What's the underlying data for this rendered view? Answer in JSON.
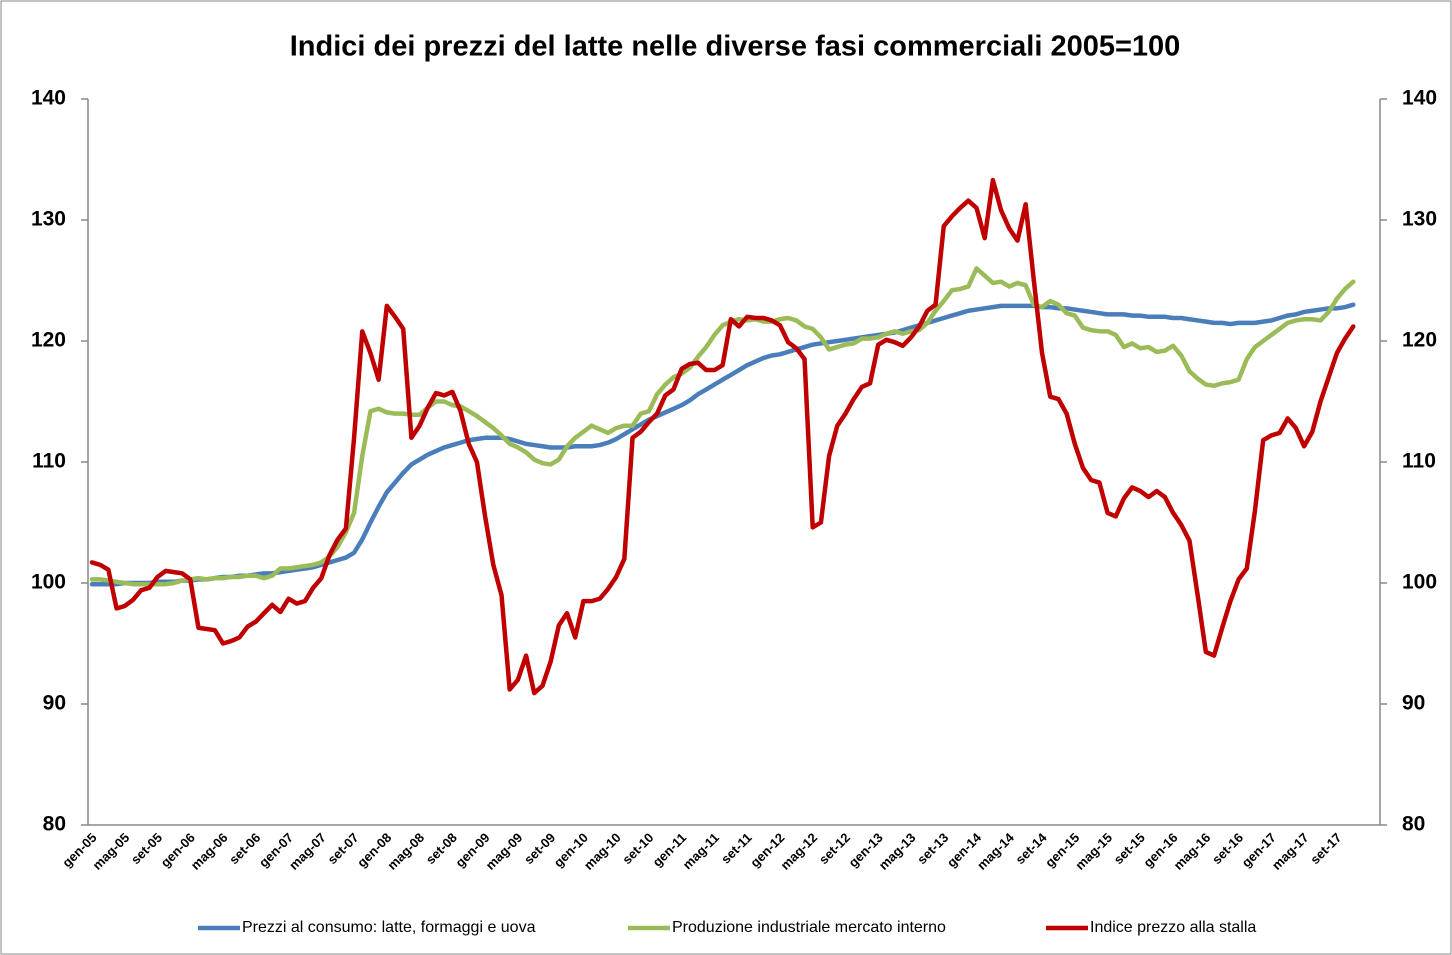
{
  "chart_data": {
    "type": "line",
    "title": "Indici dei prezzi del latte nelle diverse fasi commerciali 2005=100",
    "categories": [
      "gen-05",
      null,
      null,
      null,
      "mag-05",
      null,
      null,
      null,
      "set-05",
      null,
      null,
      null,
      "gen-06",
      null,
      null,
      null,
      "mag-06",
      null,
      null,
      null,
      "set-06",
      null,
      null,
      null,
      "gen-07",
      null,
      null,
      null,
      "mag-07",
      null,
      null,
      null,
      "set-07",
      null,
      null,
      null,
      "gen-08",
      null,
      null,
      null,
      "mag-08",
      null,
      null,
      null,
      "set-08",
      null,
      null,
      null,
      "gen-09",
      null,
      null,
      null,
      "mag-09",
      null,
      null,
      null,
      "set-09",
      null,
      null,
      null,
      "gen-10",
      null,
      null,
      null,
      "mag-10",
      null,
      null,
      null,
      "set-10",
      null,
      null,
      null,
      "gen-11",
      null,
      null,
      null,
      "mag-11",
      null,
      null,
      null,
      "set-11",
      null,
      null,
      null,
      "gen-12",
      null,
      null,
      null,
      "mag-12",
      null,
      null,
      null,
      "set-12",
      null,
      null,
      null,
      "gen-13",
      null,
      null,
      null,
      "mag-13",
      null,
      null,
      null,
      "set-13",
      null,
      null,
      null,
      "gen-14",
      null,
      null,
      null,
      "mag-14",
      null,
      null,
      null,
      "set-14",
      null,
      null,
      null,
      "gen-15",
      null,
      null,
      null,
      "mag-15",
      null,
      null,
      null,
      "set-15",
      null,
      null,
      null,
      "gen-16",
      null,
      null,
      null,
      "mag-16",
      null,
      null,
      null,
      "set-16",
      null,
      null,
      null,
      "gen-17",
      null,
      null,
      null,
      "mag-17",
      null,
      null,
      null,
      "set-17",
      null,
      null
    ],
    "series": [
      {
        "name": "Prezzi al consumo: latte, formaggi e uova",
        "color": "#4a7ebb",
        "values": [
          99.9,
          99.9,
          99.9,
          99.9,
          100,
          100,
          100,
          100,
          100.1,
          100.1,
          100.1,
          100.2,
          100.2,
          100.3,
          100.3,
          100.4,
          100.5,
          100.5,
          100.6,
          100.6,
          100.7,
          100.8,
          100.8,
          100.9,
          101,
          101.1,
          101.2,
          101.3,
          101.5,
          101.7,
          101.9,
          102.1,
          102.5,
          103.6,
          105,
          106.3,
          107.5,
          108.3,
          109.1,
          109.8,
          110.2,
          110.6,
          110.9,
          111.2,
          111.4,
          111.6,
          111.8,
          111.9,
          112,
          112,
          112,
          111.9,
          111.7,
          111.5,
          111.4,
          111.3,
          111.2,
          111.2,
          111.2,
          111.3,
          111.3,
          111.3,
          111.4,
          111.6,
          111.9,
          112.3,
          112.7,
          113.1,
          113.5,
          113.8,
          114.1,
          114.4,
          114.7,
          115.1,
          115.6,
          116,
          116.4,
          116.8,
          117.2,
          117.6,
          118,
          118.3,
          118.6,
          118.8,
          118.9,
          119.1,
          119.3,
          119.5,
          119.7,
          119.8,
          119.9,
          120,
          120.1,
          120.2,
          120.3,
          120.4,
          120.5,
          120.6,
          120.7,
          120.9,
          121.1,
          121.3,
          121.5,
          121.7,
          121.9,
          122.1,
          122.3,
          122.5,
          122.6,
          122.7,
          122.8,
          122.9,
          122.9,
          122.9,
          122.9,
          122.9,
          122.8,
          122.8,
          122.7,
          122.7,
          122.6,
          122.5,
          122.4,
          122.3,
          122.2,
          122.2,
          122.2,
          122.1,
          122.1,
          122,
          122,
          122,
          121.9,
          121.9,
          121.8,
          121.7,
          121.6,
          121.5,
          121.5,
          121.4,
          121.5,
          121.5,
          121.5,
          121.6,
          121.7,
          121.9,
          122.1,
          122.2,
          122.4,
          122.5,
          122.6,
          122.7,
          122.7,
          122.8,
          123
        ]
      },
      {
        "name": "Produzione industriale mercato interno",
        "color": "#9bbb59",
        "values": [
          100.3,
          100.3,
          100.2,
          100.1,
          100,
          99.9,
          99.9,
          99.9,
          99.9,
          99.9,
          100,
          100.2,
          100.3,
          100.4,
          100.3,
          100.4,
          100.4,
          100.5,
          100.5,
          100.6,
          100.6,
          100.4,
          100.6,
          101.2,
          101.2,
          101.3,
          101.4,
          101.5,
          101.7,
          102.2,
          103,
          104.2,
          105.8,
          110.5,
          114.2,
          114.4,
          114.1,
          114,
          114,
          113.9,
          113.9,
          114.5,
          115,
          115,
          114.7,
          114.6,
          114.2,
          113.8,
          113.3,
          112.8,
          112.2,
          111.5,
          111.2,
          110.8,
          110.2,
          109.9,
          109.8,
          110.2,
          111.3,
          112,
          112.5,
          113,
          112.7,
          112.4,
          112.8,
          113,
          113,
          114,
          114.2,
          115.6,
          116.4,
          117,
          117.3,
          117.8,
          118.7,
          119.5,
          120.5,
          121.3,
          121.6,
          121.8,
          121.7,
          121.8,
          121.6,
          121.6,
          121.8,
          121.9,
          121.7,
          121.2,
          121,
          120.3,
          119.3,
          119.5,
          119.7,
          119.8,
          120.2,
          120.2,
          120.3,
          120.6,
          120.8,
          120.6,
          120.8,
          120.9,
          121.5,
          122.5,
          123.3,
          124.2,
          124.3,
          124.5,
          126,
          125.4,
          124.8,
          124.9,
          124.5,
          124.8,
          124.6,
          123,
          122.8,
          123.3,
          123,
          122.3,
          122.1,
          121.1,
          120.9,
          120.8,
          120.8,
          120.5,
          119.5,
          119.8,
          119.4,
          119.5,
          119.1,
          119.2,
          119.6,
          118.8,
          117.5,
          116.9,
          116.4,
          116.3,
          116.5,
          116.6,
          116.8,
          118.5,
          119.5,
          120,
          120.5,
          121,
          121.5,
          121.7,
          121.8,
          121.8,
          121.7,
          122.4,
          123.5,
          124.3,
          124.9
        ]
      },
      {
        "name": "Indice prezzo alla stalla",
        "color": "#c00000",
        "values": [
          101.7,
          101.5,
          101.1,
          97.9,
          98.1,
          98.6,
          99.4,
          99.6,
          100.5,
          101,
          100.9,
          100.8,
          100.3,
          96.3,
          96.2,
          96.1,
          95,
          95.2,
          95.5,
          96.4,
          96.8,
          97.5,
          98.2,
          97.6,
          98.7,
          98.3,
          98.5,
          99.6,
          100.4,
          102.3,
          103.6,
          104.5,
          112,
          120.8,
          119,
          116.8,
          122.9,
          122,
          121,
          112,
          113,
          114.5,
          115.7,
          115.5,
          115.8,
          114.2,
          111.5,
          110,
          105.5,
          101.5,
          99,
          91.2,
          92,
          94,
          90.9,
          91.5,
          93.5,
          96.5,
          97.5,
          95.5,
          98.5,
          98.5,
          98.7,
          99.5,
          100.5,
          102,
          112,
          112.5,
          113.3,
          114,
          115.5,
          116,
          117.7,
          118.1,
          118.2,
          117.6,
          117.6,
          118,
          121.8,
          121.2,
          122,
          121.9,
          121.9,
          121.7,
          121.3,
          119.9,
          119.4,
          118.5,
          104.6,
          105,
          110.5,
          113,
          114,
          115.2,
          116.2,
          116.5,
          119.7,
          120.1,
          119.9,
          119.6,
          120.3,
          121.2,
          122.5,
          123,
          129.5,
          130.3,
          131,
          131.6,
          131,
          128.5,
          133.3,
          130.8,
          129.3,
          128.3,
          131.3,
          125,
          119,
          115.4,
          115.2,
          114,
          111.5,
          109.5,
          108.5,
          108.3,
          105.8,
          105.5,
          107,
          107.9,
          107.6,
          107.1,
          107.6,
          107.1,
          105.8,
          104.8,
          103.5,
          99,
          94.3,
          94,
          96.3,
          98.5,
          100.3,
          101.2,
          106,
          111.8,
          112.2,
          112.4,
          113.6,
          112.8,
          111.3,
          112.5,
          115,
          117,
          119,
          120.2,
          121.2
        ]
      }
    ],
    "ylim": [
      80,
      140
    ],
    "yticks": [
      80,
      90,
      100,
      110,
      120,
      130,
      140
    ],
    "y2lim": [
      80,
      140
    ],
    "y2ticks": [
      80,
      90,
      100,
      110,
      120,
      130,
      140
    ],
    "legend": "bottom",
    "grid": false
  }
}
